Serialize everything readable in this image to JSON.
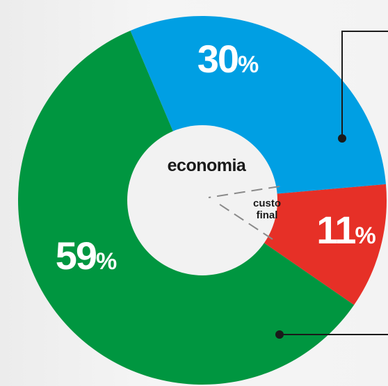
{
  "chart_data": {
    "type": "pie",
    "style": "donut",
    "center_label": "economia",
    "annotation_label": [
      "custo",
      "final"
    ],
    "categories": [
      "",
      "",
      ""
    ],
    "values": [
      30,
      11,
      59
    ],
    "value_labels": [
      "30",
      "11",
      "59"
    ],
    "percent_sign": "%",
    "colors": [
      "#009fe3",
      "#e63027",
      "#009640"
    ],
    "legend": "none"
  }
}
